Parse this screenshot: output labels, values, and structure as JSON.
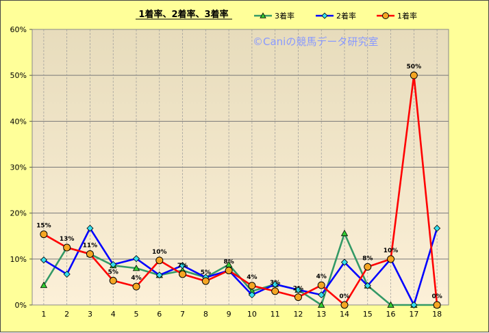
{
  "chart_data": {
    "type": "line",
    "title": "1着率、2着率、3着率",
    "watermark": "©Caniの競馬データ研究室",
    "categories": [
      "1",
      "2",
      "3",
      "4",
      "5",
      "6",
      "7",
      "8",
      "9",
      "10",
      "11",
      "12",
      "13",
      "14",
      "15",
      "16",
      "17",
      "18"
    ],
    "ylim": [
      0,
      60
    ],
    "yticks": [
      "0%",
      "10%",
      "20%",
      "30%",
      "40%",
      "50%",
      "60%"
    ],
    "grid": true,
    "legend_position": "top-right",
    "series": [
      {
        "name": "3着率",
        "color": "#339966",
        "marker": "triangle",
        "values": [
          4.3,
          12.5,
          11.1,
          8.6,
          8.0,
          6.5,
          7.5,
          6.0,
          8.8,
          3.0,
          4.5,
          3.3,
          0.0,
          15.6,
          4.2,
          0.0,
          0.0,
          0.0
        ]
      },
      {
        "name": "2着率",
        "color": "#0000ff",
        "marker": "diamond",
        "values": [
          9.8,
          6.7,
          16.7,
          8.8,
          10.1,
          6.5,
          8.6,
          6.0,
          7.5,
          2.2,
          4.5,
          3.3,
          2.2,
          9.3,
          4.2,
          10.0,
          0.0,
          16.7
        ]
      },
      {
        "name": "1着率",
        "color": "#ff0000",
        "marker": "circle",
        "values": [
          15.4,
          12.5,
          11.1,
          5.3,
          4.0,
          9.7,
          6.7,
          5.2,
          7.5,
          4.2,
          3.0,
          1.7,
          4.3,
          0.0,
          8.3,
          10.0,
          50.0,
          0.0
        ],
        "labels": [
          "15%",
          "13%",
          "11%",
          "5%",
          "4%",
          "10%",
          "7%",
          "5%",
          "8%",
          "4%",
          "3%",
          "2%",
          "4%",
          "0%",
          "8%",
          "10%",
          "50%",
          "0%"
        ]
      }
    ]
  }
}
